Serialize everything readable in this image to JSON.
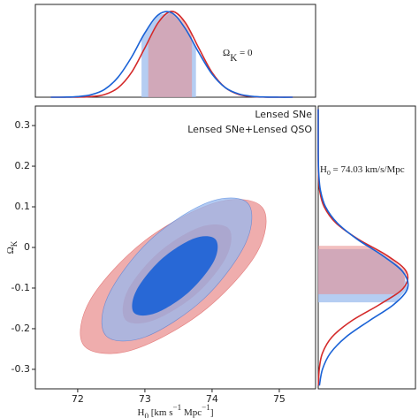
{
  "chart_data": [
    {
      "type": "contour",
      "xlabel": [
        {
          "text": "H"
        },
        {
          "text": "0",
          "pos": "sub"
        },
        {
          "text": " [km s"
        },
        {
          "text": "−1",
          "pos": "super"
        },
        {
          "text": " Mpc"
        },
        {
          "text": "−1",
          "pos": "super"
        },
        {
          "text": "]"
        }
      ],
      "ylabel": [
        {
          "text": "Ω"
        },
        {
          "text": "K",
          "pos": "sub"
        }
      ],
      "xlim": [
        71.37,
        75.54
      ],
      "ylim": [
        -0.348,
        0.348
      ],
      "xticks": [
        72,
        73,
        74,
        75
      ],
      "yticks": [
        -0.3,
        -0.2,
        -0.1,
        0,
        0.1,
        0.2,
        0.3
      ],
      "legend": "upper right",
      "series": [
        {
          "name": "Lensed SNe",
          "color": "#d42a2a",
          "contours": [
            {
              "x": [
                74.75,
                74.66,
                73.84,
                72.78,
                72.09,
                72.19,
                73.0,
                74.07
              ],
              "y": [
                0.098,
                -0.015,
                -0.161,
                -0.254,
                -0.241,
                -0.128,
                0.017,
                0.111
              ]
            },
            {
              "x": [
                74.25,
                74.21,
                73.75,
                73.12,
                72.71,
                72.74,
                73.2,
                73.82
              ],
              "y": [
                0.046,
                -0.024,
                -0.117,
                -0.18,
                -0.178,
                -0.107,
                -0.013,
                0.05
              ]
            }
          ]
        },
        {
          "name": "Lensed SNe+Lensed QSO",
          "color": "#1a62d6",
          "contours": [
            {
              "x": [
                74.53,
                74.5,
                73.88,
                73.01,
                72.42,
                72.45,
                73.07,
                73.94
              ],
              "y": [
                0.109,
                0.011,
                -0.126,
                -0.22,
                -0.217,
                -0.12,
                0.017,
                0.111
              ]
            },
            {
              "x": [
                74.05,
                74.03,
                73.66,
                73.17,
                72.84,
                72.87,
                73.24,
                73.73
              ],
              "y": [
                0.02,
                -0.033,
                -0.109,
                -0.161,
                -0.161,
                -0.107,
                -0.03,
                0.022
              ]
            }
          ]
        }
      ]
    },
    {
      "type": "density",
      "orientation": "vertical",
      "annotation": [
        {
          "text": "Ω"
        },
        {
          "text": "K",
          "pos": "sub"
        },
        {
          "text": " = 0"
        }
      ],
      "xlim": [
        71.37,
        75.54
      ],
      "ylim": [
        0,
        1.08
      ],
      "x": [
        71.6,
        71.8,
        72.0,
        72.2,
        72.4,
        72.6,
        72.8,
        73.0,
        73.2,
        73.4,
        73.6,
        73.8,
        74.0,
        74.2,
        74.4,
        74.6,
        74.8,
        75.0,
        75.2
      ],
      "series": [
        {
          "color": "#d42a2a",
          "interval": [
            73.05,
            73.7
          ],
          "values": [
            0,
            0,
            0.001,
            0.007,
            0.031,
            0.109,
            0.287,
            0.575,
            0.87,
            1,
            0.87,
            0.575,
            0.287,
            0.109,
            0.031,
            0.007,
            0.001,
            0,
            0
          ]
        },
        {
          "color": "#1a62d6",
          "interval": [
            72.95,
            73.76
          ],
          "values": [
            0,
            0.001,
            0.007,
            0.029,
            0.091,
            0.232,
            0.464,
            0.749,
            0.959,
            0.982,
            0.8,
            0.522,
            0.269,
            0.11,
            0.037,
            0.01,
            0.002,
            0,
            0
          ]
        }
      ]
    },
    {
      "type": "density",
      "orientation": "horizontal",
      "annotation": [
        {
          "text": "H"
        },
        {
          "text": "0",
          "pos": "sub"
        },
        {
          "text": " = 74.03 km/s/Mpc"
        }
      ],
      "xlim": [
        -0.348,
        0.348
      ],
      "ylim": [
        0,
        1.08
      ],
      "x": [
        -0.34,
        -0.3,
        -0.26,
        -0.22,
        -0.18,
        -0.14,
        -0.1,
        -0.06,
        -0.02,
        0.02,
        0.06,
        0.1,
        0.14,
        0.18,
        0.22,
        0.26,
        0.3,
        0.34
      ],
      "series": [
        {
          "color": "#d42a2a",
          "interval": [
            -0.115,
            0.004
          ],
          "values": [
            0.002,
            0.011,
            0.047,
            0.155,
            0.375,
            0.685,
            0.946,
            0.98,
            0.765,
            0.446,
            0.198,
            0.066,
            0.016,
            0.003,
            0,
            0,
            0,
            0
          ]
        },
        {
          "color": "#1a62d6",
          "interval": [
            -0.135,
            -0.004
          ],
          "values": [
            0.013,
            0.047,
            0.135,
            0.311,
            0.57,
            0.841,
            0.993,
            0.94,
            0.714,
            0.434,
            0.212,
            0.081,
            0.025,
            0.006,
            0.001,
            0,
            0,
            0
          ]
        }
      ]
    }
  ]
}
